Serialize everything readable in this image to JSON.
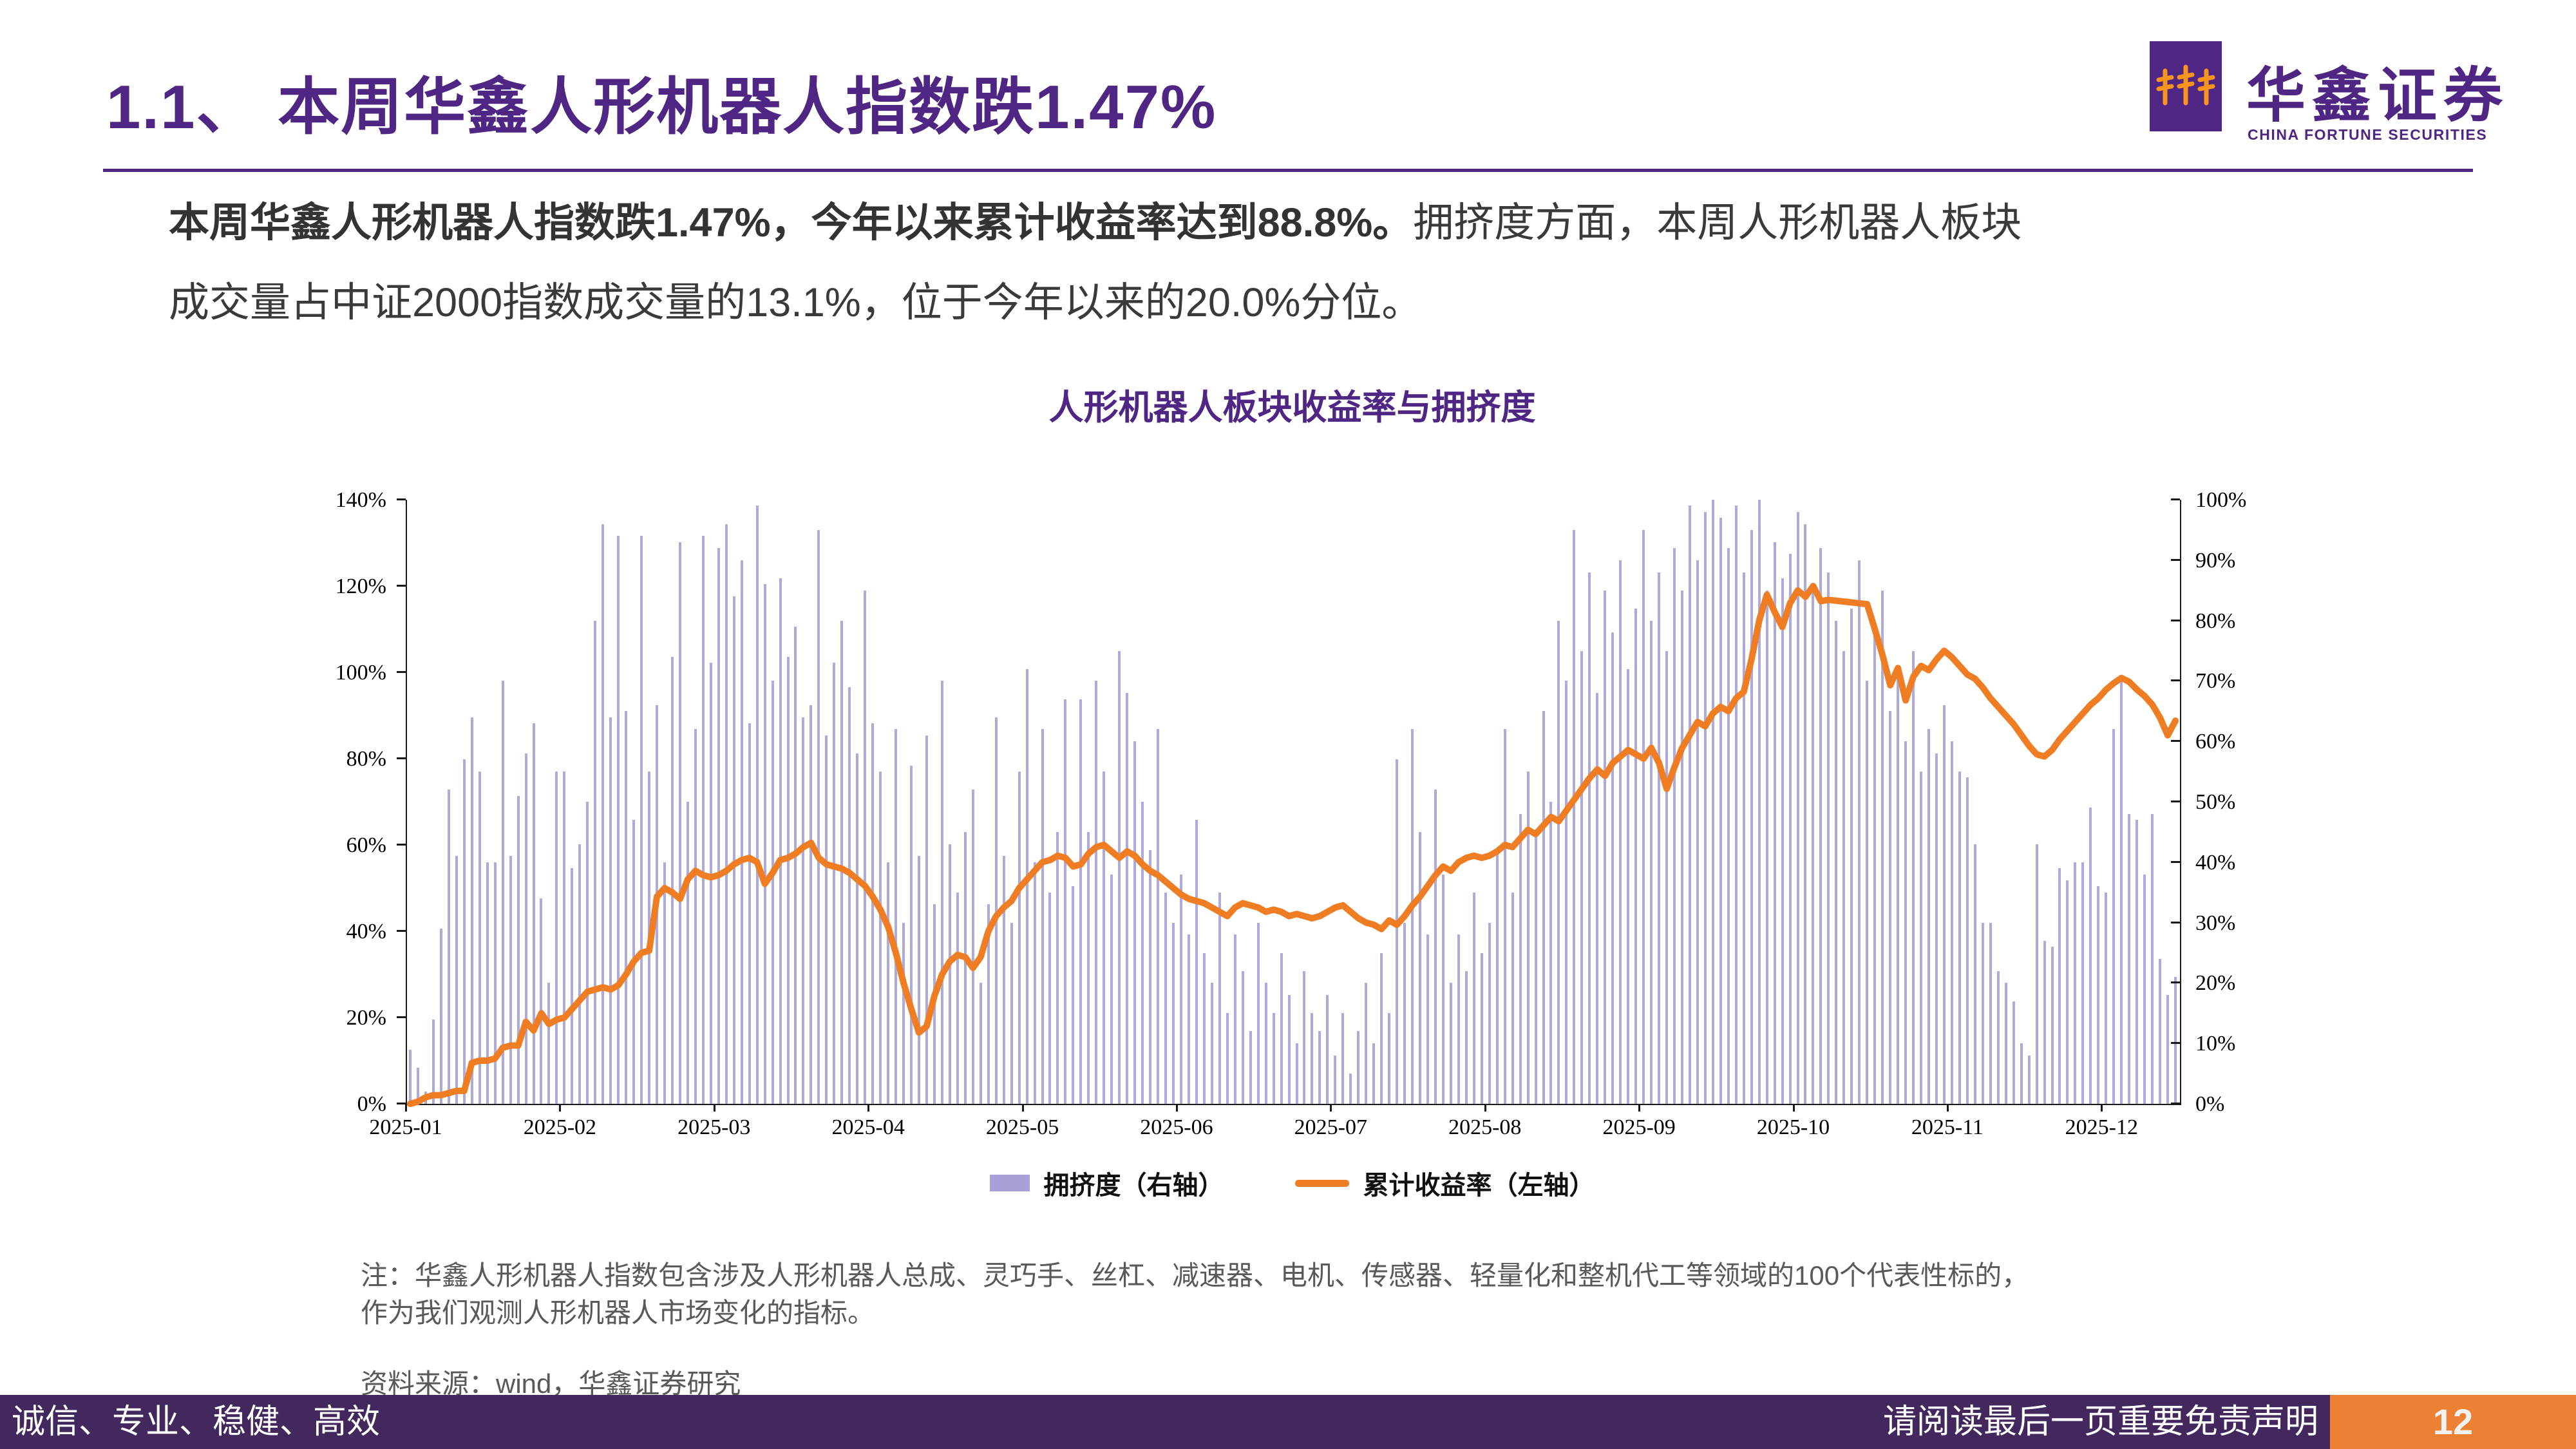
{
  "header": {
    "title": "1.1、 本周华鑫人形机器人指数跌1.47%",
    "logo": {
      "cn": "华鑫证券",
      "en": "CHINA FORTUNE SECURITIES"
    }
  },
  "summary": {
    "line1_bold": "本周华鑫人形机器人指数跌1.47%，今年以来累计收益率达到88.8%。",
    "line1_rest": "拥挤度方面，本周人形机器人板块",
    "line2": "成交量占中证2000指数成交量的13.1%，位于今年以来的20.0%分位。"
  },
  "chart_title": "人形机器人板块收益率与拥挤度",
  "chart_data": {
    "type": "bar+line",
    "title": "人形机器人板块收益率与拥挤度",
    "x_tick_labels": [
      "2025-01",
      "2025-02",
      "2025-03",
      "2025-04",
      "2025-05",
      "2025-06",
      "2025-07",
      "2025-08",
      "2025-09",
      "2025-10",
      "2025-11",
      "2025-12"
    ],
    "x_tick_days": [
      0,
      20,
      40,
      60,
      80,
      100,
      120,
      140,
      160,
      180,
      200,
      220
    ],
    "left_axis": {
      "min": 0,
      "max": 140,
      "ticks": [
        0,
        20,
        40,
        60,
        80,
        100,
        120,
        140
      ],
      "label_suffix": "%"
    },
    "right_axis": {
      "min": 0,
      "max": 100,
      "ticks": [
        0,
        10,
        20,
        30,
        40,
        50,
        60,
        70,
        80,
        90,
        100
      ],
      "label_suffix": "%"
    },
    "grid": false,
    "legend_position": "bottom",
    "series": [
      {
        "name": "拥挤度（右轴）",
        "type": "bar",
        "axis": "right",
        "color": "#AFAADC",
        "values": [
          9,
          6,
          2,
          14,
          29,
          52,
          41,
          57,
          64,
          55,
          40,
          40,
          70,
          41,
          51,
          58,
          63,
          34,
          20,
          55,
          55,
          39,
          43,
          50,
          80,
          96,
          64,
          94,
          65,
          47,
          94,
          55,
          66,
          40,
          74,
          93,
          50,
          62,
          94,
          73,
          92,
          96,
          84,
          90,
          63,
          99,
          86,
          70,
          87,
          74,
          79,
          64,
          66,
          95,
          61,
          73,
          80,
          69,
          58,
          85,
          63,
          55,
          40,
          62,
          30,
          56,
          41,
          61,
          33,
          70,
          43,
          35,
          45,
          52,
          20,
          33,
          64,
          41,
          30,
          55,
          72,
          40,
          62,
          35,
          45,
          67,
          36,
          67,
          45,
          70,
          55,
          38,
          75,
          68,
          60,
          50,
          42,
          62,
          35,
          30,
          38,
          28,
          47,
          25,
          20,
          35,
          15,
          28,
          22,
          12,
          30,
          20,
          15,
          25,
          18,
          10,
          22,
          15,
          12,
          18,
          8,
          15,
          5,
          12,
          20,
          10,
          25,
          15,
          57,
          30,
          62,
          45,
          28,
          52,
          38,
          20,
          28,
          22,
          35,
          25,
          30,
          42,
          62,
          35,
          48,
          55,
          45,
          65,
          50,
          80,
          70,
          95,
          75,
          88,
          68,
          85,
          78,
          90,
          72,
          82,
          95,
          80,
          88,
          75,
          92,
          85,
          99,
          90,
          98,
          100,
          97,
          92,
          99,
          88,
          95,
          100,
          85,
          93,
          87,
          91,
          98,
          96,
          85,
          92,
          88,
          80,
          75,
          82,
          90,
          70,
          78,
          85,
          65,
          72,
          60,
          75,
          55,
          62,
          58,
          66,
          60,
          55,
          54,
          43,
          30,
          30,
          22,
          20,
          17,
          10,
          8,
          43,
          27,
          26,
          39,
          37,
          40,
          40,
          49,
          36,
          35,
          62,
          71,
          48,
          47,
          38,
          48,
          24,
          18,
          21
        ]
      },
      {
        "name": "累计收益率（左轴）",
        "type": "line",
        "axis": "left",
        "color": "#EE7D23",
        "values": [
          0,
          0.5,
          1.5,
          2,
          2,
          2.5,
          3,
          3,
          9.5,
          10,
          10,
          10.5,
          13,
          13.5,
          13.5,
          19,
          17,
          21,
          18.5,
          19.5,
          20,
          22,
          24,
          26,
          26.5,
          27,
          26.5,
          27.5,
          30,
          33,
          35,
          35.5,
          48,
          50,
          49,
          47.5,
          52,
          54,
          53,
          52.5,
          53,
          54,
          55.5,
          56.5,
          57,
          56,
          51,
          53.5,
          56.5,
          57,
          58,
          59.5,
          60.5,
          57,
          55.5,
          55,
          54.5,
          53.5,
          52,
          50.5,
          48,
          45,
          41,
          35,
          28,
          22,
          16.5,
          18,
          25,
          30,
          33,
          34.5,
          34,
          31.5,
          34,
          40,
          43.5,
          45.5,
          47,
          50,
          52,
          54,
          56,
          56.5,
          57.5,
          57,
          55,
          55.5,
          58,
          59.5,
          60,
          58.5,
          57,
          58.5,
          57.5,
          55.5,
          54,
          53,
          51.5,
          50,
          48.5,
          47.5,
          47,
          46.5,
          45.5,
          44.5,
          43.5,
          45.5,
          46.5,
          46,
          45.5,
          44.5,
          45,
          44.5,
          43.5,
          44,
          43.5,
          43,
          43.5,
          44.5,
          45.5,
          46,
          44.5,
          43,
          42,
          41.5,
          40.5,
          42.5,
          41.5,
          43.5,
          46,
          48,
          50.5,
          53,
          55,
          54,
          56,
          57,
          57.5,
          57,
          57.5,
          58.5,
          60,
          59.5,
          61.5,
          63.5,
          62.5,
          64.5,
          66.5,
          65.5,
          68,
          70.5,
          73,
          75.5,
          77.5,
          76,
          79,
          80.5,
          82,
          81,
          80,
          82.5,
          79,
          73,
          78,
          82.5,
          85.5,
          88.5,
          87.5,
          90.5,
          92,
          91,
          94,
          95.5,
          103,
          112,
          118,
          114,
          110.5,
          116,
          119,
          117.5,
          120,
          116.5,
          116.8,
          116.6,
          116.4,
          116.2,
          116,
          115.8,
          110,
          104,
          97,
          101,
          93.5,
          99,
          101.5,
          100.5,
          103,
          105,
          103.5,
          101.5,
          99.5,
          98.5,
          96.5,
          94,
          92,
          90,
          88,
          85.5,
          83,
          81,
          80.5,
          82,
          84.5,
          86.5,
          88.5,
          90.5,
          92.5,
          94,
          96,
          97.5,
          98.7,
          97.8,
          96,
          94.5,
          92.5,
          89.5,
          85.4,
          88.8
        ]
      }
    ]
  },
  "notes": {
    "line1": "注：华鑫人形机器人指数包含涉及人形机器人总成、灵巧手、丝杠、减速器、电机、传感器、轻量化和整机代工等领域的100个代表性标的，",
    "line2": "作为我们观测人形机器人市场变化的指标。",
    "source": "资料来源：wind，华鑫证券研究"
  },
  "footer": {
    "slogan": "诚信、专业、稳健、高效",
    "disclaimer": "请阅读最后一页重要免责声明",
    "page_number": "12"
  },
  "colors": {
    "brand_purple": "#4F2683",
    "footer_purple": "#43285E",
    "accent_orange": "#EC8033",
    "line_orange": "#EE7D23",
    "bar_purple": "#AFAADC"
  }
}
